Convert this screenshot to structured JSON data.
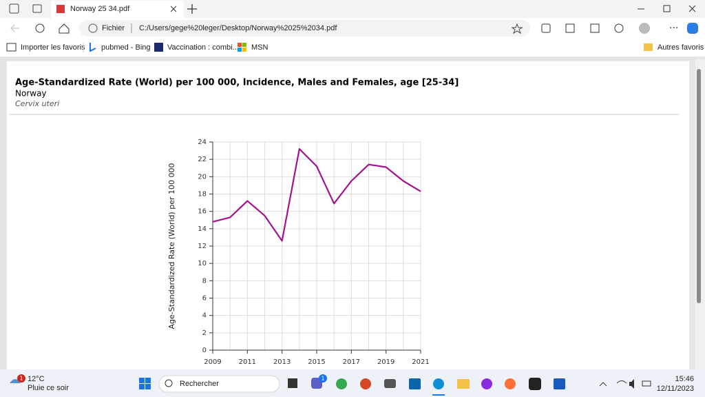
{
  "browser": {
    "tab_title": "Norway 25 34.pdf",
    "address_prefix": "Fichier",
    "url": "C:/Users/gege%20leger/Desktop/Norway%2025%2034.pdf",
    "bookmarks": [
      "Importer les favoris",
      "pubmed - Bing",
      "Vaccination : combi...",
      "MSN"
    ],
    "other_bookmarks": "Autres favoris"
  },
  "chart_data": {
    "type": "line",
    "title": "Age-Standardized Rate (World) per 100 000, Incidence, Males and Females, age [25-34]",
    "subtitle": "Norway",
    "annotations": [
      "Cervix uteri"
    ],
    "y_label": "Age-Standardized Rate (World) per 100 000",
    "x": [
      2009,
      2010,
      2011,
      2012,
      2013,
      2014,
      2015,
      2016,
      2017,
      2018,
      2019,
      2020,
      2021
    ],
    "values": [
      14.8,
      15.3,
      17.2,
      15.5,
      12.6,
      23.2,
      21.2,
      16.9,
      19.5,
      21.4,
      21.1,
      19.5,
      18.3
    ],
    "color": "#a3128d",
    "xlim": [
      2009,
      2021
    ],
    "xticks": [
      2009,
      2011,
      2013,
      2015,
      2017,
      2019,
      2021
    ],
    "ylim": [
      0,
      24
    ],
    "yticks": [
      0,
      2,
      4,
      6,
      8,
      10,
      12,
      14,
      16,
      18,
      20,
      22,
      24
    ],
    "grid": true
  },
  "taskbar": {
    "weather_temp": "12°C",
    "weather_note": "Pluie ce soir",
    "search": "Rechercher",
    "time": "15:46",
    "date": "12/11/2023",
    "badges": [
      "1",
      "1"
    ]
  }
}
